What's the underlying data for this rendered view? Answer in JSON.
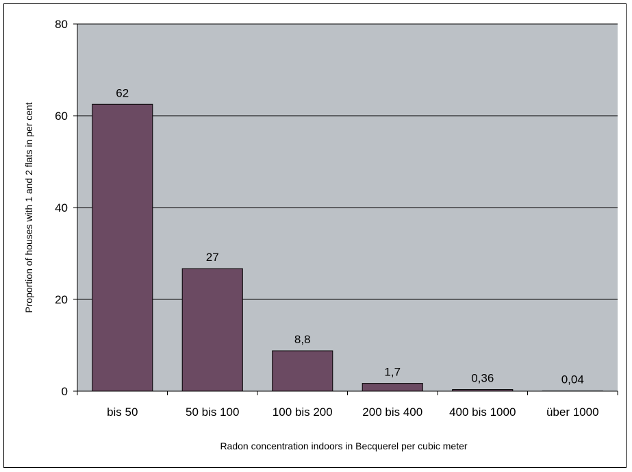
{
  "chart_data": {
    "type": "bar",
    "title": "",
    "xlabel": "Radon concentration indoors in Becquerel per cubic meter",
    "ylabel": "Proportion of houses with 1 and 2 flats in per cent",
    "categories": [
      "bis 50",
      "50 bis 100",
      "100 bis 200",
      "200 bis 400",
      "400 bis 1000",
      "über 1000"
    ],
    "values": [
      62.5,
      26.7,
      8.8,
      1.7,
      0.36,
      0.04
    ],
    "data_labels": [
      "62",
      "27",
      "8,8",
      "1,7",
      "0,36",
      "0,04"
    ],
    "ylim": [
      0,
      80
    ],
    "yticks": [
      "0",
      "20",
      "40",
      "60",
      "80"
    ],
    "grid": true,
    "legend": "none",
    "colors": {
      "bar": "#6b4a62",
      "plot_background": "#bcc1c6",
      "gridline": "#000000"
    }
  }
}
